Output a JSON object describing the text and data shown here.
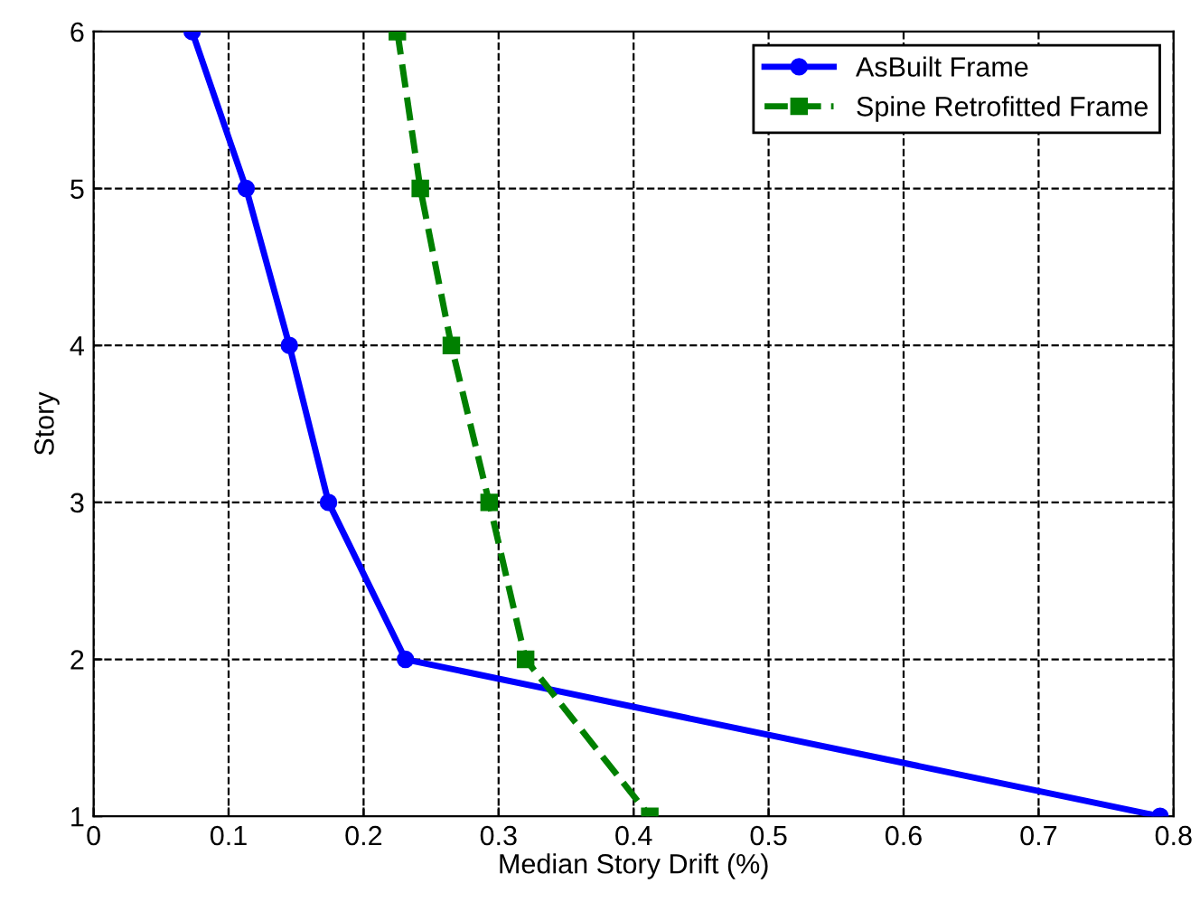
{
  "chart_data": {
    "type": "line",
    "xlabel": "Median Story Drift (%)",
    "ylabel": "Story",
    "xlim": [
      0,
      0.8
    ],
    "xticks": [
      0,
      0.1,
      0.2,
      0.3,
      0.4,
      0.5,
      0.6,
      0.7,
      0.8
    ],
    "ylim": [
      1,
      6
    ],
    "yticks": [
      1,
      2,
      3,
      4,
      5,
      6
    ],
    "grid": true,
    "legend": "top right",
    "series": [
      {
        "name": "AsBuilt Frame",
        "color": "#0000ff",
        "marker": "circle",
        "line_style": "solid",
        "x": [
          0.073,
          0.113,
          0.145,
          0.174,
          0.231,
          0.79
        ],
        "values": [
          6,
          5,
          4,
          3,
          2,
          1
        ]
      },
      {
        "name": "Spine Retrofitted Frame",
        "color": "#008000",
        "marker": "square",
        "line_style": "dashed",
        "x": [
          0.225,
          0.242,
          0.265,
          0.293,
          0.32,
          0.412
        ],
        "values": [
          6,
          5,
          4,
          3,
          2,
          1
        ]
      }
    ]
  }
}
